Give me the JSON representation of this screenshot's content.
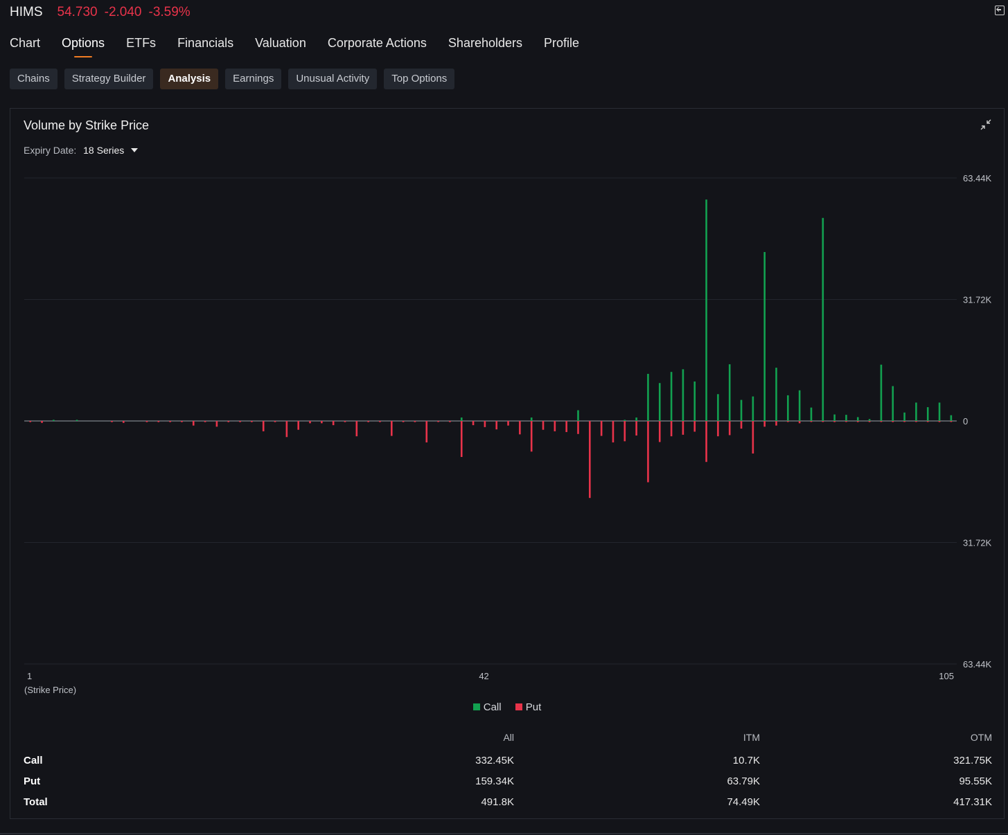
{
  "ticker": {
    "symbol": "HIMS",
    "price": "54.730",
    "change": "-2.040",
    "change_pct": "-3.59%"
  },
  "colors": {
    "call": "#12a150",
    "put": "#e8334a",
    "accent": "#f07c24",
    "background": "#131419"
  },
  "main_tabs": [
    {
      "label": "Chart"
    },
    {
      "label": "Options",
      "active": true
    },
    {
      "label": "ETFs"
    },
    {
      "label": "Financials"
    },
    {
      "label": "Valuation"
    },
    {
      "label": "Corporate Actions"
    },
    {
      "label": "Shareholders"
    },
    {
      "label": "Profile"
    }
  ],
  "sub_tabs": [
    {
      "label": "Chains"
    },
    {
      "label": "Strategy Builder"
    },
    {
      "label": "Analysis",
      "active": true
    },
    {
      "label": "Earnings"
    },
    {
      "label": "Unusual Activity"
    },
    {
      "label": "Top Options"
    }
  ],
  "panel": {
    "title": "Volume by Strike Price",
    "expiry_label": "Expiry Date:",
    "expiry_value": "18 Series"
  },
  "chart_data": {
    "type": "bar",
    "title": "Volume by Strike Price",
    "xlabel": "(Strike Price)",
    "x_tick_labels": [
      "1",
      "42",
      "105"
    ],
    "y_tick_labels": [
      "63.44K",
      "31.72K",
      "0",
      "31.72K",
      "63.44K"
    ],
    "ylim": [
      -63440,
      63440
    ],
    "legend": [
      "Call",
      "Put"
    ],
    "series": [
      {
        "name": "Call",
        "values": [
          0,
          0,
          300,
          0,
          300,
          0,
          0,
          0,
          0,
          0,
          0,
          0,
          0,
          0,
          0,
          0,
          0,
          0,
          0,
          0,
          0,
          0,
          0,
          0,
          0,
          0,
          0,
          0,
          0,
          0,
          0,
          0,
          0,
          0,
          0,
          0,
          0,
          900,
          0,
          0,
          0,
          0,
          0,
          900,
          0,
          0,
          0,
          2800,
          0,
          0,
          0,
          300,
          900,
          12300,
          9900,
          12800,
          13500,
          10300,
          57800,
          7000,
          14800,
          5500,
          6400,
          44100,
          13900,
          6700,
          8000,
          3500,
          53000,
          1700,
          1600,
          1000,
          500,
          14700,
          9100,
          2200,
          4800,
          3600,
          4800,
          1500
        ]
      },
      {
        "name": "Put",
        "values": [
          -300,
          -500,
          0,
          0,
          0,
          0,
          0,
          -300,
          -500,
          0,
          -300,
          -300,
          -300,
          -300,
          -1200,
          -300,
          -1500,
          -300,
          -300,
          -300,
          -2700,
          -300,
          -4200,
          -2300,
          -600,
          -600,
          -1100,
          -300,
          -4000,
          -300,
          -300,
          -3900,
          -300,
          -300,
          -5600,
          -200,
          -300,
          -9400,
          -1100,
          -1600,
          -2200,
          -1200,
          -3500,
          -8000,
          -2300,
          -2700,
          -2900,
          -3400,
          -20100,
          -3900,
          -5600,
          -5300,
          -3800,
          -16000,
          -5500,
          -4000,
          -3600,
          -2800,
          -10700,
          -4000,
          -3700,
          -2000,
          -8500,
          -1500,
          -1200,
          -200,
          -600,
          -200,
          -200,
          -300,
          -200,
          -300,
          -300,
          -200,
          -300,
          -200,
          -200,
          -200,
          -300,
          -200
        ]
      }
    ]
  },
  "legend": {
    "call_label": "Call",
    "put_label": "Put"
  },
  "summary": {
    "headers": {
      "all": "All",
      "itm": "ITM",
      "otm": "OTM"
    },
    "rows": [
      {
        "label": "Call",
        "all": "332.45K",
        "itm": "10.7K",
        "otm": "321.75K"
      },
      {
        "label": "Put",
        "all": "159.34K",
        "itm": "63.79K",
        "otm": "95.55K"
      },
      {
        "label": "Total",
        "all": "491.8K",
        "itm": "74.49K",
        "otm": "417.31K"
      }
    ]
  }
}
